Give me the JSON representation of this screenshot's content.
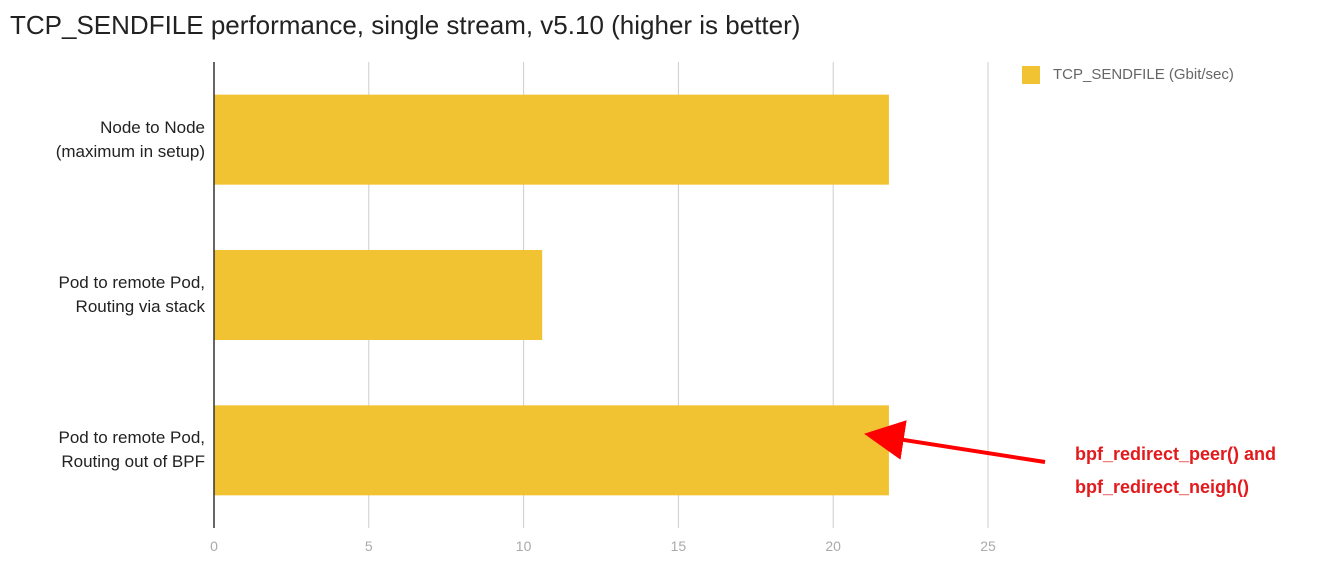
{
  "chart_data": {
    "type": "bar",
    "orientation": "horizontal",
    "title": "TCP_SENDFILE performance, single stream, v5.10 (higher is better)",
    "categories": [
      "Node to Node\n(maximum in setup)",
      "Pod to remote Pod,\nRouting via stack",
      "Pod to remote Pod,\nRouting out of BPF"
    ],
    "series": [
      {
        "name": "TCP_SENDFILE (Gbit/sec)",
        "color": "#f1c232",
        "values": [
          21.8,
          10.6,
          21.8
        ]
      }
    ],
    "xlim": [
      0,
      25
    ],
    "xticks": [
      0,
      5,
      10,
      15,
      20,
      25
    ],
    "grid": true,
    "legend": "top-right",
    "annotation": "bpf_redirect_peer() and\nbpf_redirect_neigh()"
  }
}
